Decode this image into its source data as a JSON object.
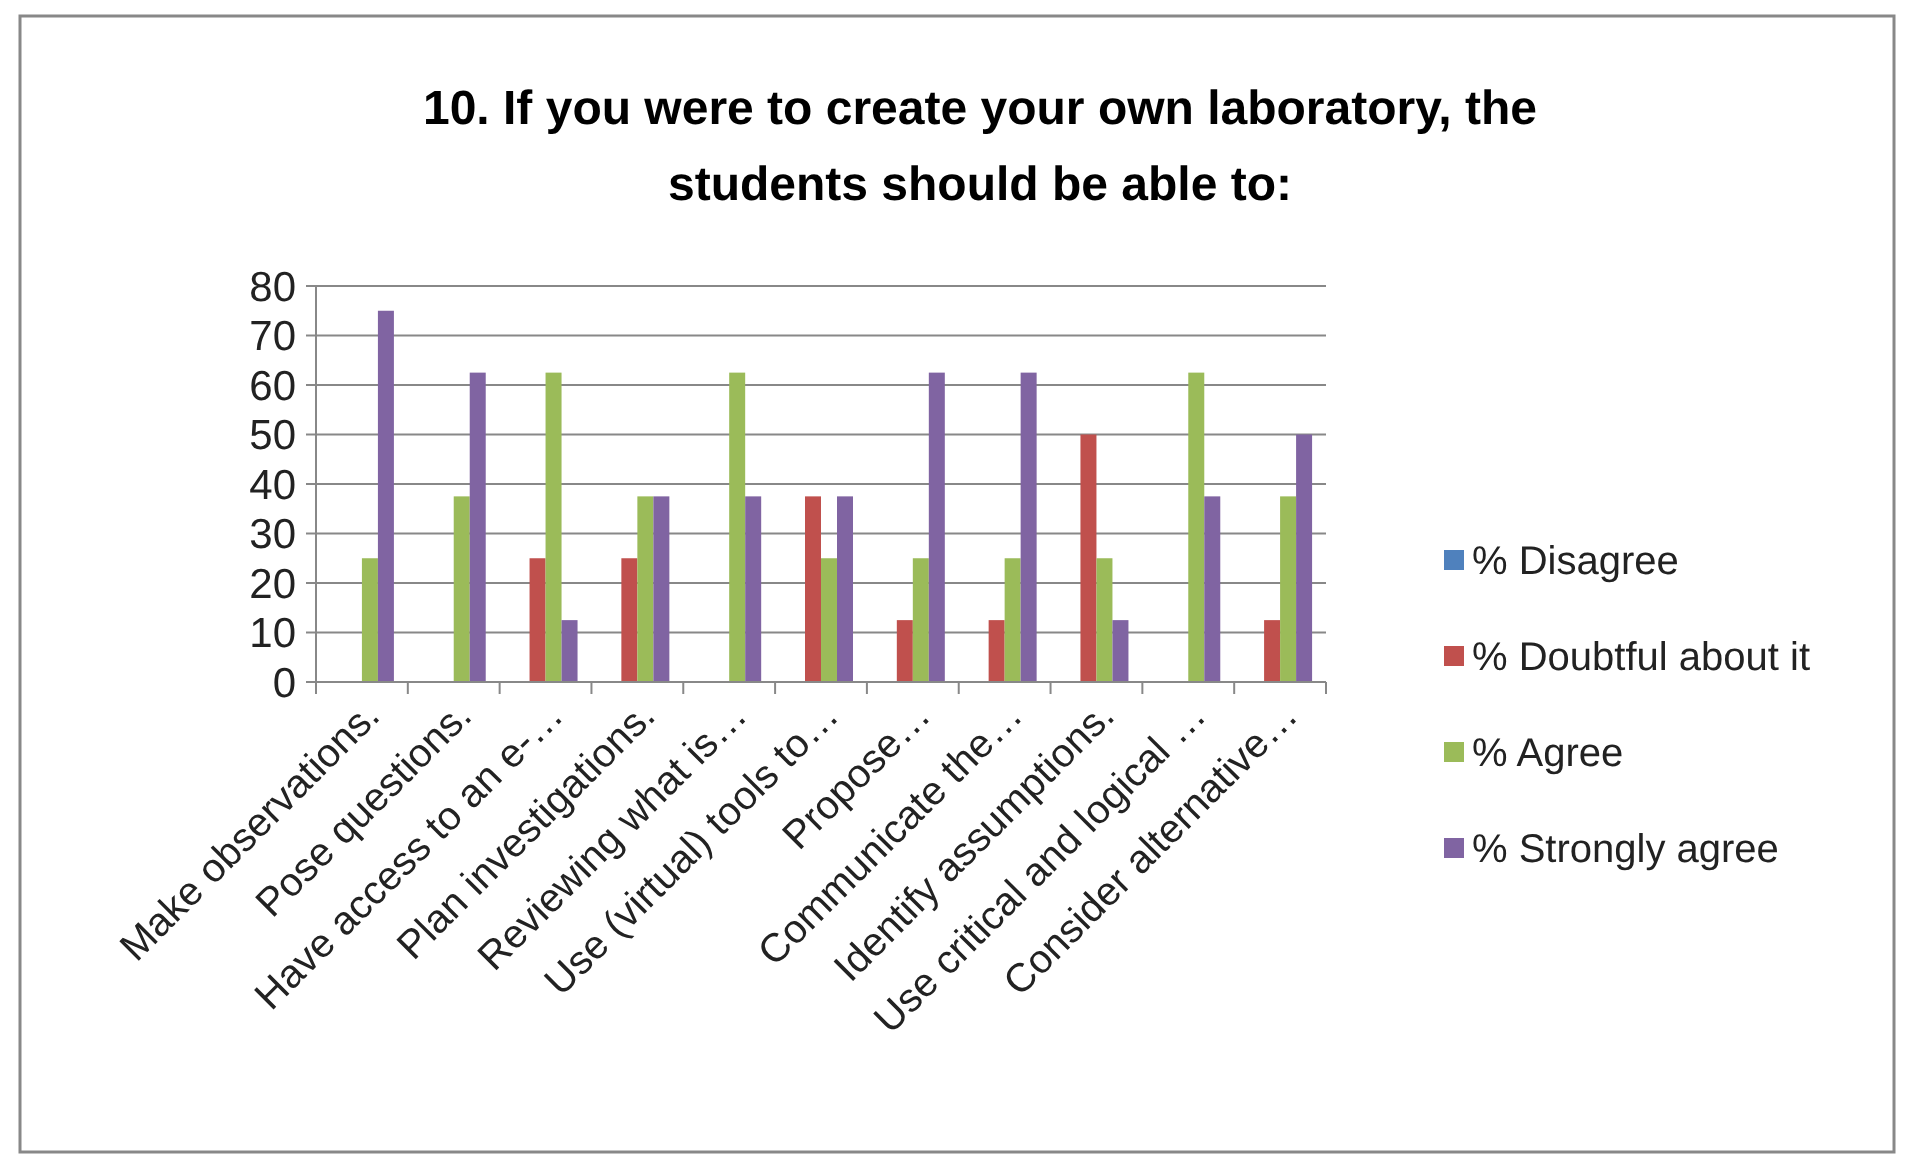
{
  "chart_data": {
    "type": "bar",
    "title": "10. If you were to create your own laboratory, the students should be able to:",
    "categories": [
      "Make observations.",
      "Pose questions.",
      "Have access to an e-…",
      "Plan investigations.",
      "Reviewing what is…",
      "Use (virtual) tools to…",
      "Propose…",
      "Communicate the…",
      "Identify assumptions.",
      "Use critical and logical …",
      "Consider alternative…"
    ],
    "series": [
      {
        "name": "% Disagree",
        "color": "#4f81bd",
        "values": [
          0,
          0,
          0,
          0,
          0,
          0,
          0,
          0,
          0,
          0,
          0
        ]
      },
      {
        "name": "% Doubtful about it",
        "color": "#c0504d",
        "values": [
          0,
          0,
          25,
          25,
          0,
          37.5,
          12.5,
          12.5,
          50,
          0,
          12.5
        ]
      },
      {
        "name": "% Agree",
        "color": "#9bbb59",
        "values": [
          25,
          37.5,
          62.5,
          37.5,
          62.5,
          25,
          25,
          25,
          25,
          62.5,
          37.5
        ]
      },
      {
        "name": "% Strongly agree",
        "color": "#8064a2",
        "values": [
          75,
          62.5,
          12.5,
          37.5,
          37.5,
          37.5,
          62.5,
          62.5,
          12.5,
          37.5,
          50
        ]
      }
    ],
    "ylim": [
      0,
      80
    ],
    "yticks": [
      0,
      10,
      20,
      30,
      40,
      50,
      60,
      70,
      80
    ],
    "grid": "y",
    "legend": "right"
  }
}
